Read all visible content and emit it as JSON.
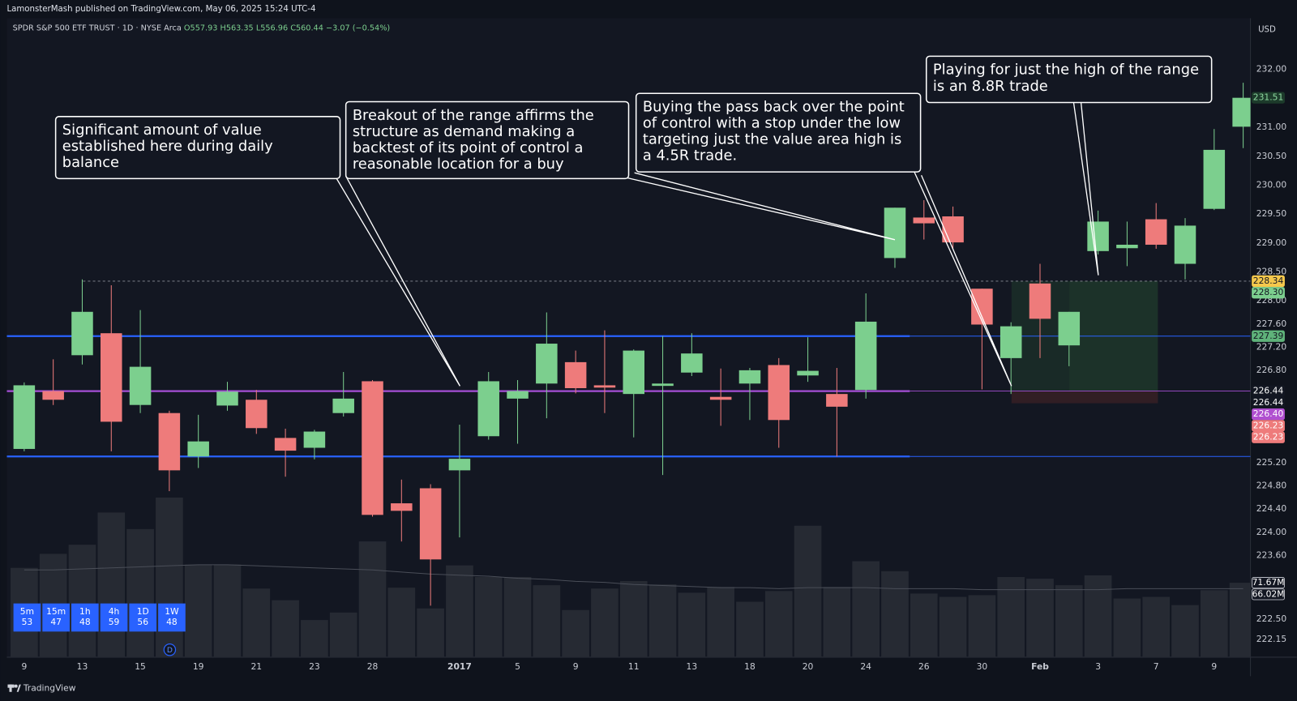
{
  "header": {
    "publisher": "LamonsterMash published on TradingView.com, May 06, 2025 15:24 UTC-4",
    "brand": "TradingView"
  },
  "chart_data": {
    "type": "candlestick",
    "symbol": "SPDR S&P 500 ETF TRUST · 1D · NYSE Arca",
    "ohlc_text": [
      "O557.93",
      "H563.35",
      "L556.96",
      "C560.44",
      "−3.07 (−0.54%)"
    ],
    "currency": "USD",
    "categories": [
      "9",
      null,
      "13",
      null,
      "15",
      null,
      "19",
      null,
      "21",
      null,
      "23",
      null,
      "28",
      null,
      null,
      "2017",
      null,
      "5",
      null,
      "9",
      null,
      "11",
      null,
      "13",
      null,
      "18",
      null,
      "20",
      null,
      "24",
      null,
      "26",
      null,
      "30",
      null,
      "Feb",
      null,
      "3",
      null,
      "7",
      null,
      "9",
      null
    ],
    "open": [
      225.44,
      226.44,
      227.06,
      227.44,
      226.2,
      226.06,
      225.31,
      226.19,
      226.29,
      225.63,
      225.46,
      226.06,
      226.61,
      224.5,
      224.76,
      225.07,
      225.66,
      226.31,
      226.57,
      226.94,
      226.54,
      226.39,
      226.53,
      226.76,
      226.34,
      226.57,
      226.89,
      226.71,
      226.39,
      226.46,
      228.74,
      229.44,
      229.46,
      228.21,
      227.01,
      228.3,
      227.23,
      228.86,
      228.91,
      229.41,
      228.64,
      229.59,
      231.01
    ],
    "high": [
      226.59,
      226.99,
      228.37,
      228.27,
      227.84,
      226.1,
      226.03,
      226.6,
      226.46,
      225.79,
      225.77,
      226.77,
      226.63,
      224.91,
      224.83,
      225.86,
      226.77,
      226.63,
      227.8,
      227.14,
      227.49,
      227.16,
      227.39,
      227.44,
      226.83,
      226.84,
      227.01,
      227.37,
      226.84,
      228.13,
      229.61,
      229.74,
      229.63,
      228.21,
      227.63,
      228.64,
      227.81,
      229.56,
      229.37,
      229.69,
      229.43,
      230.97,
      231.77
    ],
    "low": [
      225.4,
      226.2,
      226.9,
      225.4,
      226.06,
      224.71,
      225.11,
      226.1,
      225.7,
      224.96,
      225.26,
      226.0,
      224.27,
      223.84,
      222.73,
      223.91,
      225.6,
      225.53,
      225.97,
      226.4,
      226.06,
      225.64,
      224.99,
      226.7,
      225.84,
      225.94,
      225.46,
      226.6,
      225.31,
      226.31,
      228.57,
      229.06,
      228.9,
      226.47,
      226.39,
      227.01,
      226.87,
      228.8,
      228.6,
      228.9,
      228.37,
      229.57,
      230.64
    ],
    "close": [
      226.54,
      226.29,
      227.81,
      225.91,
      226.86,
      225.07,
      225.57,
      226.43,
      225.8,
      225.41,
      225.74,
      226.31,
      224.3,
      224.37,
      223.53,
      225.27,
      226.61,
      226.44,
      227.26,
      226.49,
      226.5,
      227.14,
      226.57,
      227.09,
      226.29,
      226.8,
      225.94,
      226.79,
      226.17,
      227.64,
      229.61,
      229.34,
      229.01,
      227.59,
      227.56,
      227.69,
      227.81,
      229.37,
      228.97,
      228.97,
      229.3,
      230.61,
      231.51
    ],
    "up_color": "#7ccf8e",
    "down_color": "#ee7b7b",
    "ylim": [
      221.84,
      232.886
    ],
    "yticks": [
      {
        "value": 232,
        "label": "232.00"
      },
      {
        "value": 231,
        "label": "231.00"
      },
      {
        "value": 230.5,
        "label": "230.50"
      },
      {
        "value": 230,
        "label": "230.00"
      },
      {
        "value": 229.5,
        "label": "229.50"
      },
      {
        "value": 229,
        "label": "229.00"
      },
      {
        "value": 228.5,
        "label": "228.50"
      },
      {
        "value": 228,
        "label": "228.00"
      },
      {
        "value": 227.6,
        "label": "227.60"
      },
      {
        "value": 227.2,
        "label": "227.20"
      },
      {
        "value": 226.8,
        "label": "226.80"
      },
      {
        "value": 225.2,
        "label": "225.20"
      },
      {
        "value": 224.8,
        "label": "224.80"
      },
      {
        "value": 224.4,
        "label": "224.40"
      },
      {
        "value": 224,
        "label": "224.00"
      },
      {
        "value": 223.6,
        "label": "223.60"
      },
      {
        "value": 222.5,
        "label": "222.50"
      },
      {
        "value": 222.15,
        "label": "222.15"
      }
    ],
    "grid": false,
    "volume": {
      "color": "#262a33",
      "ma_color": "#4a4e58",
      "vlim": [
        0,
        160
      ],
      "values": [
        86.0,
        99.5,
        108.3,
        139.3,
        123.4,
        153.7,
        89.2,
        89.2,
        66.1,
        54.9,
        35.8,
        43.0,
        111.5,
        66.9,
        47.0,
        88.4,
        77.2,
        77.2,
        69.3,
        45.4,
        66.1,
        73.3,
        70.1,
        62.1,
        67.7,
        53.4,
        63.7,
        126.6,
        67.7,
        92.4,
        82.8,
        61.3,
        58.1,
        59.7,
        77.2,
        75.6,
        69.3,
        78.8,
        56.5,
        58.1,
        50.2,
        64.5,
        71.67
      ],
      "ma": [
        84,
        84,
        85,
        86,
        87,
        88,
        89,
        89,
        88,
        87,
        86,
        85,
        84,
        82,
        80,
        79,
        78,
        76,
        75,
        73,
        72,
        70,
        69,
        68,
        67,
        67,
        66,
        67,
        67,
        67,
        66,
        66,
        66,
        65,
        65,
        65,
        65,
        65,
        66,
        66,
        66,
        66,
        66.02
      ],
      "labels": [
        {
          "value": 71.67,
          "label": "71.67M"
        },
        {
          "value": 66.02,
          "label": "66.02M"
        }
      ]
    },
    "levels": [
      {
        "value": 227.39,
        "color": "#2962ff"
      },
      {
        "value": 226.44,
        "color": "#a64fd6"
      },
      {
        "value": 225.31,
        "color": "#2962ff"
      }
    ],
    "dashed_level": 228.34,
    "position": {
      "entry": 226.44,
      "target": 228.34,
      "stop": 226.23
    },
    "price_labels": [
      {
        "value": 231.51,
        "label": "231.51",
        "color": "#1d3b2b",
        "text_color": "#8ed9a0"
      },
      {
        "value": 228.34,
        "label": "228.34",
        "color": "#f5c84c",
        "text_color": "#131722"
      },
      {
        "value": 228.3,
        "label": "228.30",
        "color": "#7ccf8e",
        "text_color": "#131722"
      },
      {
        "value": 227.39,
        "label": "227.39",
        "color": "#5fb37a",
        "text_color": "#131722"
      },
      {
        "value": 226.44,
        "label": "226.44",
        "color": "#131722",
        "text_color": "#ffffff"
      },
      {
        "value": 226.44,
        "label": "226.44",
        "color": "#131722",
        "text_color": "#ffffff"
      },
      {
        "value": 226.4,
        "label": "226.40",
        "color": "#b04fd0",
        "text_color": "#ffffff"
      },
      {
        "value": 226.23,
        "label": "226.23",
        "color": "#ee7b7b",
        "text_color": "#ffffff"
      },
      {
        "value": 226.23,
        "label": "226.23",
        "color": "#ee7b7b",
        "text_color": "#ffffff"
      }
    ],
    "annotations": [
      {
        "lines": [
          "Significant amount of value",
          "established here during daily",
          "balance"
        ]
      },
      {
        "lines": [
          "Breakout of the range affirms the",
          "structure as demand making a",
          "backtest of its point of control a",
          "reasonable location for a buy"
        ]
      },
      {
        "lines": [
          "Buying the pass back over the point",
          "of control with a stop under the low",
          "targeting just the value area high is",
          "a 4.5R trade."
        ]
      },
      {
        "lines": [
          "Playing for just the high of the range",
          "is an 8.8R trade"
        ]
      }
    ],
    "timeframes": [
      {
        "label": "5m",
        "value": 53
      },
      {
        "label": "15m",
        "value": 47
      },
      {
        "label": "1h",
        "value": 48
      },
      {
        "label": "4h",
        "value": 59
      },
      {
        "label": "1D",
        "value": 56
      },
      {
        "label": "1W",
        "value": 48
      }
    ],
    "event_marker": "D"
  }
}
